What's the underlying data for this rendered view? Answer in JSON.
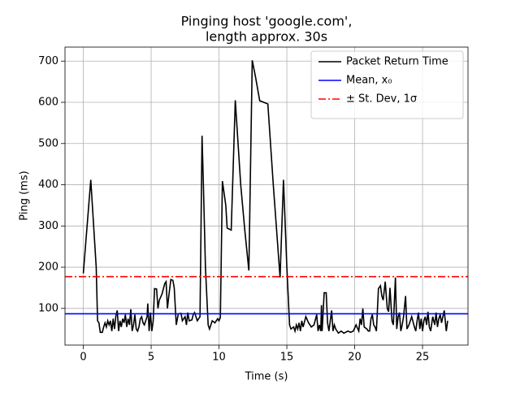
{
  "chart_data": {
    "type": "line",
    "title": [
      "Pinging host 'google.com',",
      "length approx. 30s"
    ],
    "x_label": "Time (s)",
    "y_label": "Ping (ms)",
    "xlim": [
      -1.35,
      28.35
    ],
    "ylim": [
      11,
      734
    ],
    "xticks": [
      0,
      5,
      10,
      15,
      20,
      25
    ],
    "yticks": [
      100,
      200,
      300,
      400,
      500,
      600,
      700
    ],
    "grid": true,
    "legend": "upper right",
    "series": [
      {
        "name": "Packet Return Time",
        "color": "#000000",
        "x": [
          0,
          0.55,
          0.95,
          1.05,
          1.15,
          1.25,
          1.4,
          1.5,
          1.6,
          1.7,
          1.8,
          1.9,
          2.0,
          2.1,
          2.2,
          2.3,
          2.4,
          2.5,
          2.6,
          2.7,
          2.8,
          2.9,
          3.0,
          3.1,
          3.2,
          3.3,
          3.4,
          3.5,
          3.6,
          3.7,
          3.8,
          3.9,
          4.0,
          4.1,
          4.2,
          4.3,
          4.4,
          4.5,
          4.6,
          4.7,
          4.75,
          4.85,
          4.95,
          5.05,
          5.15,
          5.25,
          5.4,
          5.5,
          5.6,
          5.8,
          6.0,
          6.1,
          6.2,
          6.3,
          6.45,
          6.6,
          6.7,
          6.85,
          7.0,
          7.2,
          7.3,
          7.5,
          7.6,
          7.7,
          7.8,
          8.0,
          8.1,
          8.2,
          8.4,
          8.6,
          8.75,
          8.85,
          9.0,
          9.2,
          9.3,
          9.5,
          9.7,
          9.9,
          10.0,
          10.1,
          10.25,
          10.5,
          10.6,
          10.9,
          11.2,
          11.6,
          11.9,
          12.2,
          12.45,
          12.7,
          13.0,
          13.6,
          14.0,
          14.5,
          14.75,
          15.0,
          15.2,
          15.3,
          15.5,
          15.6,
          15.7,
          15.8,
          15.9,
          16.0,
          16.1,
          16.2,
          16.4,
          16.6,
          16.8,
          17.0,
          17.2,
          17.3,
          17.4,
          17.5,
          17.55,
          17.6,
          17.75,
          17.9,
          18.0,
          18.1,
          18.3,
          18.4,
          18.5,
          18.6,
          18.8,
          19.0,
          19.2,
          19.5,
          19.7,
          19.9,
          20.1,
          20.3,
          20.4,
          20.5,
          20.6,
          20.7,
          20.9,
          21.0,
          21.1,
          21.2,
          21.3,
          21.4,
          21.5,
          21.6,
          21.75,
          21.9,
          22.0,
          22.1,
          22.25,
          22.4,
          22.5,
          22.6,
          22.75,
          22.85,
          23.0,
          23.1,
          23.2,
          23.3,
          23.4,
          23.5,
          23.6,
          23.75,
          23.85,
          24.0,
          24.2,
          24.4,
          24.5,
          24.6,
          24.7,
          24.8,
          24.9,
          25.0,
          25.1,
          25.2,
          25.3,
          25.4,
          25.5,
          25.6,
          25.75,
          25.9,
          26.0,
          26.1,
          26.2,
          26.3,
          26.4,
          26.5,
          26.6,
          26.75,
          26.85
        ],
        "values": [
          185,
          412,
          200,
          70,
          65,
          42,
          42,
          55,
          65,
          55,
          70,
          60,
          70,
          45,
          75,
          50,
          82,
          95,
          45,
          70,
          55,
          75,
          65,
          85,
          55,
          75,
          60,
          98,
          45,
          60,
          85,
          50,
          45,
          55,
          75,
          80,
          65,
          60,
          70,
          80,
          112,
          45,
          90,
          45,
          70,
          148,
          147,
          100,
          120,
          135,
          160,
          165,
          100,
          130,
          170,
          168,
          150,
          60,
          87,
          88,
          70,
          80,
          60,
          90,
          70,
          72,
          85,
          90,
          70,
          80,
          519,
          400,
          200,
          60,
          50,
          70,
          65,
          75,
          70,
          78,
          409,
          350,
          295,
          290,
          605,
          400,
          290,
          192,
          702,
          660,
          604,
          596,
          400,
          175,
          412,
          200,
          60,
          50,
          55,
          45,
          60,
          50,
          65,
          45,
          70,
          55,
          80,
          65,
          55,
          60,
          85,
          45,
          60,
          45,
          108,
          45,
          138,
          138,
          65,
          45,
          95,
          45,
          60,
          50,
          40,
          45,
          40,
          45,
          42,
          45,
          60,
          45,
          75,
          60,
          100,
          55,
          50,
          45,
          45,
          75,
          85,
          60,
          55,
          45,
          148,
          155,
          130,
          120,
          165,
          100,
          92,
          150,
          70,
          60,
          175,
          50,
          80,
          90,
          45,
          60,
          80,
          130,
          50,
          60,
          80,
          55,
          45,
          70,
          90,
          50,
          75,
          45,
          70,
          80,
          60,
          92,
          55,
          45,
          80,
          60,
          90,
          55,
          75,
          85,
          65,
          80,
          95,
          45,
          70
        ]
      },
      {
        "name": "Mean, x₀",
        "color": "#0000ff",
        "value": 87,
        "style": "solid"
      },
      {
        "name": "± St. Dev, 1σ",
        "color": "#ff0000",
        "value": 177,
        "style": "dashdot"
      }
    ]
  }
}
